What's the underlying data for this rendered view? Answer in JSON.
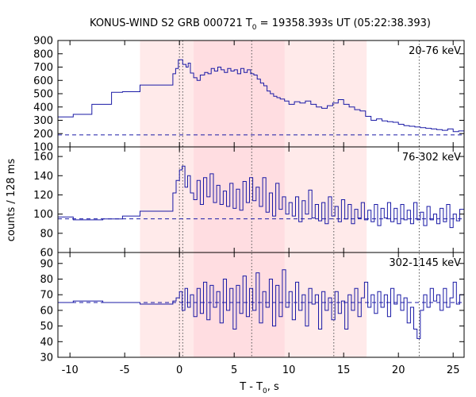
{
  "chart_data": {
    "type": "line",
    "title": "KONUS-WIND S2 GRB 000721 T",
    "title_sub": "0",
    "title_rest": " = 19358.393s UT (05:22:38.393)",
    "xlabel_main": "T - T",
    "xlabel_sub": "0",
    "xlabel_rest": ", s",
    "ylabel": "counts / 128 ms",
    "xlim": [
      -11.1,
      26.0
    ],
    "xticks": [
      -10,
      -5,
      0,
      5,
      10,
      15,
      20,
      25
    ],
    "xtick_labels": [
      "-10",
      "-5",
      "0",
      "5",
      "10",
      "15",
      "20",
      "25"
    ],
    "colors": {
      "line": "#1a1aa6",
      "band_light": "#ffeaea",
      "band_dark": "#ffdde1",
      "vline": "#555555"
    },
    "bands": [
      {
        "start": -3.6,
        "end": 17.1,
        "shade": "light"
      },
      {
        "start": 1.3,
        "end": 9.6,
        "shade": "dark"
      }
    ],
    "vlines": [
      0.0,
      0.3,
      6.6,
      14.1,
      21.9
    ],
    "panels": [
      {
        "label": "20-76 keV",
        "ylim": [
          100,
          900
        ],
        "yticks": [
          100,
          200,
          300,
          400,
          500,
          600,
          700,
          800,
          900
        ],
        "ytick_labels": [
          "100",
          "200",
          "300",
          "400",
          "500",
          "600",
          "700",
          "800",
          "900"
        ],
        "background": 190,
        "steps": [
          [
            -11.1,
            325
          ],
          [
            -9.7,
            345
          ],
          [
            -8.0,
            420
          ],
          [
            -6.2,
            510
          ],
          [
            -5.2,
            515
          ],
          [
            -3.6,
            565
          ],
          [
            -0.6,
            650
          ],
          [
            -0.35,
            690
          ],
          [
            -0.1,
            755
          ],
          [
            0.3,
            720
          ],
          [
            0.6,
            700
          ],
          [
            0.8,
            730
          ],
          [
            1.0,
            655
          ],
          [
            1.3,
            620
          ],
          [
            1.6,
            600
          ],
          [
            1.9,
            640
          ],
          [
            2.3,
            660
          ],
          [
            2.6,
            650
          ],
          [
            2.9,
            690
          ],
          [
            3.2,
            670
          ],
          [
            3.5,
            700
          ],
          [
            3.8,
            680
          ],
          [
            4.1,
            660
          ],
          [
            4.4,
            690
          ],
          [
            4.7,
            670
          ],
          [
            5.0,
            680
          ],
          [
            5.3,
            650
          ],
          [
            5.6,
            690
          ],
          [
            5.9,
            660
          ],
          [
            6.2,
            680
          ],
          [
            6.5,
            650
          ],
          [
            6.8,
            640
          ],
          [
            7.1,
            610
          ],
          [
            7.4,
            580
          ],
          [
            7.7,
            560
          ],
          [
            8.0,
            520
          ],
          [
            8.3,
            500
          ],
          [
            8.6,
            480
          ],
          [
            8.9,
            470
          ],
          [
            9.2,
            460
          ],
          [
            9.6,
            445
          ],
          [
            10.0,
            420
          ],
          [
            10.5,
            440
          ],
          [
            11.0,
            430
          ],
          [
            11.5,
            445
          ],
          [
            12.0,
            420
          ],
          [
            12.5,
            400
          ],
          [
            13.0,
            390
          ],
          [
            13.5,
            410
          ],
          [
            14.0,
            430
          ],
          [
            14.5,
            455
          ],
          [
            15.0,
            420
          ],
          [
            15.5,
            400
          ],
          [
            16.0,
            380
          ],
          [
            16.5,
            370
          ],
          [
            17.0,
            330
          ],
          [
            17.5,
            300
          ],
          [
            18.0,
            310
          ],
          [
            18.5,
            295
          ],
          [
            19.0,
            290
          ],
          [
            19.5,
            285
          ],
          [
            20.0,
            270
          ],
          [
            20.5,
            260
          ],
          [
            21.0,
            255
          ],
          [
            21.5,
            250
          ],
          [
            22.0,
            245
          ],
          [
            22.5,
            240
          ],
          [
            23.0,
            235
          ],
          [
            23.5,
            230
          ],
          [
            24.0,
            225
          ],
          [
            24.5,
            235
          ],
          [
            25.0,
            215
          ],
          [
            25.5,
            220
          ]
        ]
      },
      {
        "label": "76-302 keV",
        "ylim": [
          60,
          170
        ],
        "yticks": [
          60,
          80,
          100,
          120,
          140,
          160
        ],
        "ytick_labels": [
          "60",
          "80",
          "100",
          "120",
          "140",
          "160"
        ],
        "background": 95,
        "steps": [
          [
            -11.1,
            97
          ],
          [
            -9.7,
            94
          ],
          [
            -7.0,
            95
          ],
          [
            -5.2,
            98
          ],
          [
            -3.6,
            103
          ],
          [
            -0.6,
            122
          ],
          [
            -0.3,
            135
          ],
          [
            0.0,
            146
          ],
          [
            0.25,
            150
          ],
          [
            0.5,
            128
          ],
          [
            0.75,
            140
          ],
          [
            1.0,
            122
          ],
          [
            1.3,
            115
          ],
          [
            1.6,
            135
          ],
          [
            1.9,
            110
          ],
          [
            2.2,
            138
          ],
          [
            2.5,
            118
          ],
          [
            2.8,
            142
          ],
          [
            3.1,
            112
          ],
          [
            3.4,
            130
          ],
          [
            3.7,
            110
          ],
          [
            4.0,
            124
          ],
          [
            4.3,
            108
          ],
          [
            4.6,
            132
          ],
          [
            4.9,
            106
          ],
          [
            5.2,
            126
          ],
          [
            5.5,
            104
          ],
          [
            5.8,
            134
          ],
          [
            6.1,
            112
          ],
          [
            6.4,
            138
          ],
          [
            6.7,
            114
          ],
          [
            7.0,
            128
          ],
          [
            7.3,
            108
          ],
          [
            7.6,
            138
          ],
          [
            7.9,
            102
          ],
          [
            8.2,
            122
          ],
          [
            8.5,
            98
          ],
          [
            8.8,
            132
          ],
          [
            9.1,
            105
          ],
          [
            9.4,
            118
          ],
          [
            9.7,
            100
          ],
          [
            10.0,
            112
          ],
          [
            10.3,
            98
          ],
          [
            10.6,
            118
          ],
          [
            10.9,
            92
          ],
          [
            11.2,
            114
          ],
          [
            11.5,
            100
          ],
          [
            11.8,
            125
          ],
          [
            12.1,
            96
          ],
          [
            12.4,
            110
          ],
          [
            12.7,
            93
          ],
          [
            13.0,
            112
          ],
          [
            13.3,
            90
          ],
          [
            13.6,
            118
          ],
          [
            13.9,
            98
          ],
          [
            14.2,
            108
          ],
          [
            14.5,
            92
          ],
          [
            14.8,
            115
          ],
          [
            15.1,
            95
          ],
          [
            15.4,
            110
          ],
          [
            15.7,
            90
          ],
          [
            16.0,
            105
          ],
          [
            16.3,
            96
          ],
          [
            16.6,
            112
          ],
          [
            16.9,
            94
          ],
          [
            17.2,
            104
          ],
          [
            17.5,
            92
          ],
          [
            17.8,
            110
          ],
          [
            18.1,
            88
          ],
          [
            18.4,
            106
          ],
          [
            18.7,
            96
          ],
          [
            19.0,
            112
          ],
          [
            19.3,
            92
          ],
          [
            19.6,
            106
          ],
          [
            19.9,
            90
          ],
          [
            20.2,
            110
          ],
          [
            20.5,
            94
          ],
          [
            20.8,
            104
          ],
          [
            21.1,
            90
          ],
          [
            21.4,
            112
          ],
          [
            21.7,
            94
          ],
          [
            22.0,
            102
          ],
          [
            22.3,
            88
          ],
          [
            22.6,
            108
          ],
          [
            22.9,
            94
          ],
          [
            23.2,
            100
          ],
          [
            23.5,
            90
          ],
          [
            23.8,
            106
          ],
          [
            24.1,
            92
          ],
          [
            24.4,
            110
          ],
          [
            24.7,
            86
          ],
          [
            25.0,
            100
          ],
          [
            25.3,
            93
          ],
          [
            25.6,
            105
          ]
        ]
      },
      {
        "label": "302-1145 keV",
        "ylim": [
          30,
          97
        ],
        "yticks": [
          30,
          40,
          50,
          60,
          70,
          80,
          90
        ],
        "ytick_labels": [
          "30",
          "40",
          "50",
          "60",
          "70",
          "80",
          "90"
        ],
        "background": 65,
        "steps": [
          [
            -11.1,
            65
          ],
          [
            -9.7,
            66
          ],
          [
            -7.0,
            65
          ],
          [
            -5.2,
            65
          ],
          [
            -3.6,
            64
          ],
          [
            -0.6,
            66
          ],
          [
            -0.3,
            68
          ],
          [
            0.0,
            72
          ],
          [
            0.25,
            60
          ],
          [
            0.5,
            74
          ],
          [
            0.75,
            62
          ],
          [
            1.0,
            70
          ],
          [
            1.3,
            56
          ],
          [
            1.6,
            74
          ],
          [
            1.9,
            58
          ],
          [
            2.2,
            78
          ],
          [
            2.5,
            54
          ],
          [
            2.8,
            76
          ],
          [
            3.1,
            62
          ],
          [
            3.4,
            72
          ],
          [
            3.7,
            52
          ],
          [
            4.0,
            80
          ],
          [
            4.3,
            60
          ],
          [
            4.6,
            74
          ],
          [
            4.9,
            48
          ],
          [
            5.2,
            76
          ],
          [
            5.5,
            58
          ],
          [
            5.8,
            82
          ],
          [
            6.1,
            56
          ],
          [
            6.4,
            74
          ],
          [
            6.7,
            60
          ],
          [
            7.0,
            84
          ],
          [
            7.3,
            52
          ],
          [
            7.6,
            72
          ],
          [
            7.9,
            62
          ],
          [
            8.2,
            80
          ],
          [
            8.5,
            50
          ],
          [
            8.8,
            76
          ],
          [
            9.1,
            56
          ],
          [
            9.4,
            86
          ],
          [
            9.7,
            62
          ],
          [
            10.0,
            72
          ],
          [
            10.3,
            54
          ],
          [
            10.6,
            78
          ],
          [
            10.9,
            60
          ],
          [
            11.2,
            70
          ],
          [
            11.5,
            50
          ],
          [
            11.8,
            74
          ],
          [
            12.1,
            64
          ],
          [
            12.4,
            70
          ],
          [
            12.7,
            48
          ],
          [
            13.0,
            72
          ],
          [
            13.3,
            60
          ],
          [
            13.6,
            68
          ],
          [
            13.9,
            54
          ],
          [
            14.2,
            72
          ],
          [
            14.5,
            58
          ],
          [
            14.8,
            66
          ],
          [
            15.1,
            48
          ],
          [
            15.4,
            70
          ],
          [
            15.7,
            60
          ],
          [
            16.0,
            74
          ],
          [
            16.3,
            56
          ],
          [
            16.6,
            68
          ],
          [
            16.9,
            78
          ],
          [
            17.2,
            62
          ],
          [
            17.5,
            70
          ],
          [
            17.8,
            58
          ],
          [
            18.1,
            72
          ],
          [
            18.4,
            62
          ],
          [
            18.7,
            70
          ],
          [
            19.0,
            56
          ],
          [
            19.3,
            74
          ],
          [
            19.6,
            64
          ],
          [
            19.9,
            70
          ],
          [
            20.2,
            60
          ],
          [
            20.5,
            68
          ],
          [
            20.8,
            52
          ],
          [
            21.1,
            62
          ],
          [
            21.4,
            48
          ],
          [
            21.7,
            42
          ],
          [
            22.0,
            60
          ],
          [
            22.3,
            70
          ],
          [
            22.6,
            62
          ],
          [
            22.9,
            74
          ],
          [
            23.2,
            66
          ],
          [
            23.5,
            70
          ],
          [
            23.8,
            60
          ],
          [
            24.1,
            74
          ],
          [
            24.4,
            62
          ],
          [
            24.7,
            68
          ],
          [
            25.0,
            78
          ],
          [
            25.3,
            64
          ],
          [
            25.6,
            70
          ]
        ]
      }
    ]
  }
}
